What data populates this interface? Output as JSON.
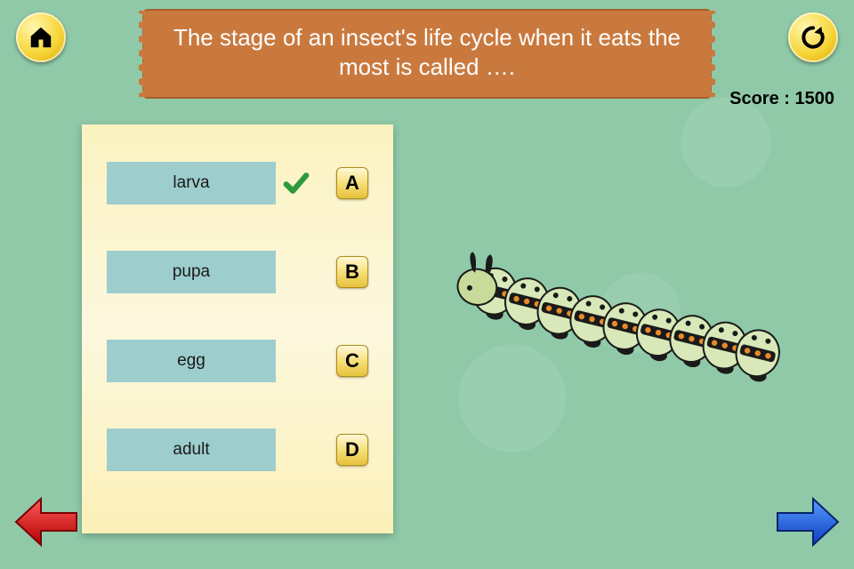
{
  "colors": {
    "background": "#8fc9a8",
    "banner_bg": "#c9793e",
    "banner_border": "#a55f2c",
    "banner_text": "#ffffff",
    "panel_bg_top": "#fbf2c0",
    "panel_bg_bottom": "#fbf0b8",
    "answer_box": "#9ecdce",
    "answer_text": "#1a1a1a",
    "badge_grad_top": "#fff8d8",
    "badge_grad_bottom": "#e6c23c",
    "yellow_btn_light": "#fff7b0",
    "yellow_btn_dark": "#d9a800",
    "check_green": "#2e9a3f",
    "prev_arrow": "#e51a1a",
    "prev_arrow_dark": "#a00000",
    "next_arrow": "#1859e5",
    "next_arrow_dark": "#0a2f8f",
    "score_text": "#000000"
  },
  "question": "The stage of an insect's life cycle when it eats the most is called ….",
  "score_label": "Score :",
  "score_value": "1500",
  "answers": [
    {
      "label": "larva",
      "letter": "A",
      "correct": true
    },
    {
      "label": "pupa",
      "letter": "B",
      "correct": false
    },
    {
      "label": "egg",
      "letter": "C",
      "correct": false
    },
    {
      "label": "adult",
      "letter": "D",
      "correct": false
    }
  ],
  "icons": {
    "home": "home-icon",
    "reload": "reload-icon",
    "prev": "previous-arrow-icon",
    "next": "next-arrow-icon",
    "check": "checkmark-icon"
  },
  "illustration": {
    "name": "caterpillar",
    "body_color_light": "#d8e8b8",
    "body_color_dark": "#9fbf6a",
    "stripe_color": "#1a1a1a",
    "spot_color": "#e88a2a",
    "segments": 9
  }
}
